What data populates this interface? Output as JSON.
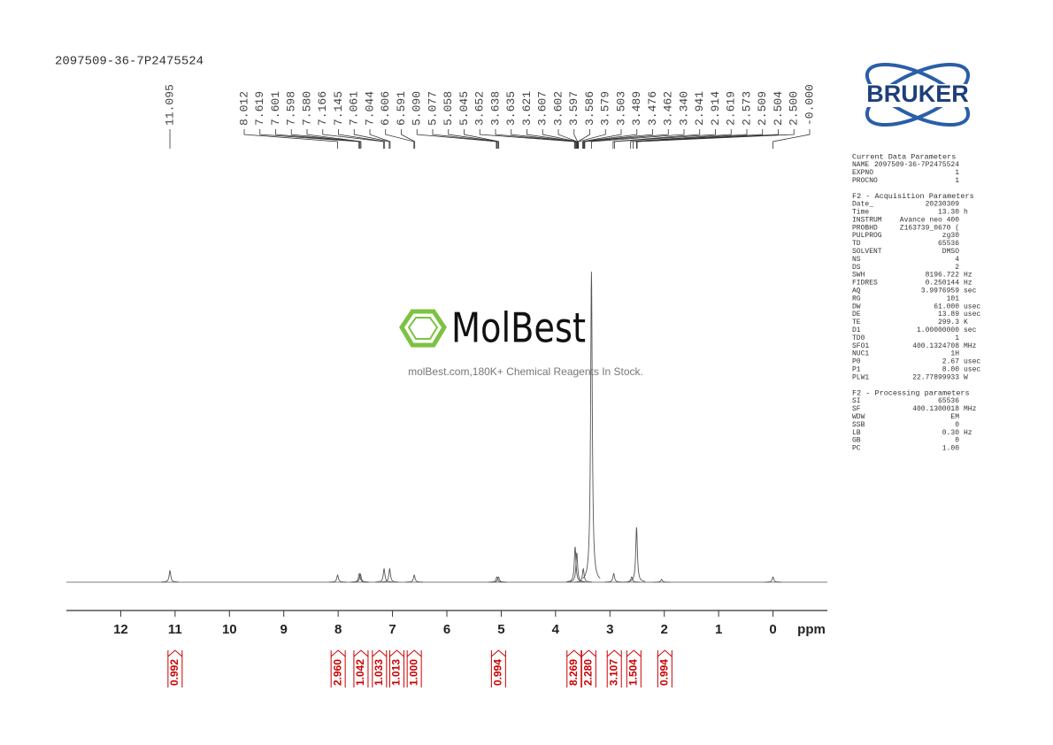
{
  "chart_data": {
    "type": "nmr",
    "title": "2097509-36-7P2475524",
    "x_unit": "ppm",
    "xlim": [
      13,
      -1
    ],
    "xticks": [
      12,
      11,
      10,
      9,
      8,
      7,
      6,
      5,
      4,
      3,
      2,
      1,
      0
    ],
    "ylim": [
      0,
      100
    ],
    "color": "#555555",
    "peaks": {
      "ppm": [
        11.095,
        8.01,
        7.61,
        7.59,
        7.155,
        7.052,
        6.6,
        5.08,
        5.05,
        3.64,
        3.61,
        3.49,
        3.34,
        2.93,
        2.6,
        2.51,
        2.05,
        0
      ],
      "height": [
        3.7,
        2.3,
        2.8,
        2.6,
        4.3,
        4.3,
        2.3,
        1.7,
        1.7,
        11.4,
        9.5,
        4.3,
        100,
        2.8,
        1.7,
        17.7,
        0.9,
        1.7
      ]
    },
    "peak_labels": [
      11.095,
      8.012,
      7.619,
      7.601,
      7.598,
      {
        "value": 7.58,
        "label": "7.580"
      },
      7.166,
      7.145,
      7.061,
      7.044,
      6.606,
      6.591,
      {
        "value": 5.09,
        "label": "5.090"
      },
      5.077,
      5.058,
      5.045,
      3.652,
      3.638,
      3.635,
      3.621,
      3.607,
      3.602,
      3.597,
      3.586,
      3.579,
      3.503,
      3.489,
      3.476,
      3.462,
      {
        "value": 3.34,
        "label": "3.340"
      },
      2.941,
      2.914,
      2.619,
      2.573,
      2.509,
      2.504,
      {
        "value": 2.5,
        "label": "2.500"
      },
      {
        "value": 0,
        "label": "-0.000"
      }
    ],
    "integrals": {
      "ppm": [
        11.0,
        8.0,
        7.58,
        7.24,
        6.92,
        6.6,
        5.05,
        3.66,
        3.39,
        2.92,
        2.56,
        1.99
      ],
      "values": [
        0.992,
        2.96,
        1.042,
        1.033,
        1.013,
        1,
        0.994,
        8.269,
        2.28,
        3.107,
        1.504,
        0.994
      ],
      "value_labels": [
        "0.992",
        "2.960",
        "1.042",
        "1.033",
        "1.013",
        "1.000",
        "0.994",
        "8.269",
        "2.280",
        "3.107",
        "1.504",
        "0.994"
      ],
      "color": "#cc0000"
    }
  },
  "watermark": {
    "brand": "MolBest",
    "tagline": "molBest.com,180K+ Chemical Reagents In Stock."
  },
  "logo": "BRUKER",
  "parameters": [
    {
      "title": "Current Data Parameters",
      "rows": [
        [
          "NAME",
          "2097509-36-7P2475524",
          ""
        ],
        [
          "EXPNO",
          "1",
          ""
        ],
        [
          "PROCNO",
          "1",
          ""
        ]
      ]
    },
    {
      "title": "F2 - Acquisition Parameters",
      "rows": [
        [
          "Date_",
          "20230309",
          ""
        ],
        [
          "Time",
          "13.30",
          "h"
        ],
        [
          "INSTRUM",
          "Avance neo 400",
          ""
        ],
        [
          "PROBHD",
          "Z163739_0670 (",
          ""
        ],
        [
          "PULPROG",
          "zg30",
          ""
        ],
        [
          "TD",
          "65536",
          ""
        ],
        [
          "SOLVENT",
          "DMSO",
          ""
        ],
        [
          "NS",
          "4",
          ""
        ],
        [
          "DS",
          "2",
          ""
        ],
        [
          "SWH",
          "8196.722",
          "Hz"
        ],
        [
          "FIDRES",
          "0.250144",
          "Hz"
        ],
        [
          "AQ",
          "3.9976959",
          "sec"
        ],
        [
          "RG",
          "101",
          ""
        ],
        [
          "DW",
          "61.000",
          "usec"
        ],
        [
          "DE",
          "13.89",
          "usec"
        ],
        [
          "TE",
          "299.3",
          "K"
        ],
        [
          "D1",
          "1.00000000",
          "sec"
        ],
        [
          "TD0",
          "1",
          ""
        ],
        [
          "SFO1",
          "400.1324708",
          "MHz"
        ],
        [
          "NUC1",
          "1H",
          ""
        ],
        [
          "P0",
          "2.67",
          "usec"
        ],
        [
          "P1",
          "8.00",
          "usec"
        ],
        [
          "PLW1",
          "22.77899933",
          "W"
        ]
      ]
    },
    {
      "title": "F2 - Processing parameters",
      "rows": [
        [
          "SI",
          "65536",
          ""
        ],
        [
          "SF",
          "400.1300018",
          "MHz"
        ],
        [
          "WDW",
          "EM",
          ""
        ],
        [
          "SSB",
          "0",
          ""
        ],
        [
          "LB",
          "0.30",
          "Hz"
        ],
        [
          "GB",
          "0",
          ""
        ],
        [
          "PC",
          "1.00",
          ""
        ]
      ]
    }
  ]
}
